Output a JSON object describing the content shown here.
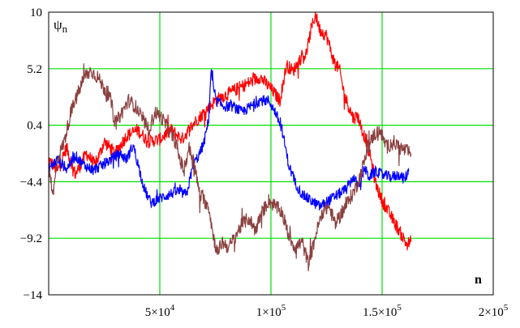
{
  "chart_data": {
    "type": "line",
    "ylabel": "ψ",
    "ylabel_subscript": "n",
    "xlabel": "n",
    "xlim": [
      0,
      200000
    ],
    "ylim": [
      -14,
      10
    ],
    "grid": true,
    "grid_color": "#00e000",
    "y_ticks": [
      {
        "value": 10,
        "label": "10"
      },
      {
        "value": 5.2,
        "label": "5.2"
      },
      {
        "value": 0.4,
        "label": "0.4"
      },
      {
        "value": -4.4,
        "label": "−4.4"
      },
      {
        "value": -9.2,
        "label": "−9.2"
      },
      {
        "value": -14,
        "label": "−14"
      }
    ],
    "x_ticks": [
      {
        "value": 50000,
        "mantissa": "5×10",
        "exp": "4"
      },
      {
        "value": 100000,
        "mantissa": "1×10",
        "exp": "5"
      },
      {
        "value": 150000,
        "mantissa": "1.5×10",
        "exp": "5"
      },
      {
        "value": 200000,
        "mantissa": "2×10",
        "exp": "5"
      }
    ],
    "series": [
      {
        "color": "#ff0000",
        "noise": 0.55,
        "points": [
          [
            0,
            -2.5
          ],
          [
            4000,
            -3.5
          ],
          [
            8000,
            -1.5
          ],
          [
            12000,
            -3.8
          ],
          [
            17000,
            -2.0
          ],
          [
            21000,
            -3.0
          ],
          [
            25000,
            -1.0
          ],
          [
            30000,
            -2.0
          ],
          [
            35000,
            -0.5
          ],
          [
            40000,
            0.0
          ],
          [
            45000,
            -1.0
          ],
          [
            50000,
            -0.8
          ],
          [
            55000,
            0.0
          ],
          [
            60000,
            -0.8
          ],
          [
            65000,
            0.5
          ],
          [
            70000,
            1.5
          ],
          [
            75000,
            2.5
          ],
          [
            80000,
            3.0
          ],
          [
            85000,
            3.5
          ],
          [
            90000,
            4.0
          ],
          [
            95000,
            4.5
          ],
          [
            100000,
            3.5
          ],
          [
            104000,
            2.5
          ],
          [
            107000,
            5.5
          ],
          [
            110000,
            5.0
          ],
          [
            113000,
            6.0
          ],
          [
            116000,
            6.5
          ],
          [
            118000,
            8.5
          ],
          [
            120000,
            9.8
          ],
          [
            122000,
            8.5
          ],
          [
            125000,
            8.0
          ],
          [
            128000,
            6.0
          ],
          [
            131000,
            5.0
          ],
          [
            133000,
            3.0
          ],
          [
            135000,
            2.0
          ],
          [
            137000,
            1.0
          ],
          [
            139000,
            1.2
          ],
          [
            141000,
            0.0
          ],
          [
            143000,
            -1.0
          ],
          [
            145000,
            -2.5
          ],
          [
            147000,
            -4.5
          ],
          [
            150000,
            -6.0
          ],
          [
            153000,
            -7.0
          ],
          [
            156000,
            -8.0
          ],
          [
            159000,
            -9.0
          ],
          [
            161000,
            -9.7
          ],
          [
            163000,
            -9.5
          ]
        ]
      },
      {
        "color": "#0000ff",
        "noise": 0.45,
        "points": [
          [
            0,
            -3.3
          ],
          [
            4000,
            -2.5
          ],
          [
            8000,
            -3.3
          ],
          [
            12000,
            -2.2
          ],
          [
            16000,
            -3.0
          ],
          [
            20000,
            -3.4
          ],
          [
            24000,
            -3.0
          ],
          [
            28000,
            -2.5
          ],
          [
            32000,
            -2.0
          ],
          [
            35000,
            -2.5
          ],
          [
            38000,
            -1.3
          ],
          [
            41000,
            -3.5
          ],
          [
            43000,
            -5.0
          ],
          [
            46000,
            -6.2
          ],
          [
            50000,
            -5.8
          ],
          [
            54000,
            -5.5
          ],
          [
            58000,
            -5.2
          ],
          [
            62000,
            -5.5
          ],
          [
            65000,
            -3.0
          ],
          [
            68000,
            -2.0
          ],
          [
            70000,
            -1.0
          ],
          [
            72000,
            1.0
          ],
          [
            73000,
            5.0
          ],
          [
            75000,
            2.5
          ],
          [
            79000,
            2.0
          ],
          [
            83000,
            2.0
          ],
          [
            87000,
            1.5
          ],
          [
            91000,
            2.0
          ],
          [
            95000,
            2.5
          ],
          [
            99000,
            2.5
          ],
          [
            102000,
            1.5
          ],
          [
            105000,
            0.0
          ],
          [
            108000,
            -3.0
          ],
          [
            111000,
            -4.5
          ],
          [
            114000,
            -5.5
          ],
          [
            118000,
            -6.0
          ],
          [
            122000,
            -6.5
          ],
          [
            126000,
            -6.0
          ],
          [
            130000,
            -5.5
          ],
          [
            134000,
            -5.0
          ],
          [
            137000,
            -4.0
          ],
          [
            140000,
            -5.0
          ],
          [
            142000,
            -3.2
          ],
          [
            144000,
            -4.0
          ],
          [
            147000,
            -3.5
          ],
          [
            150000,
            -3.8
          ],
          [
            154000,
            -4.0
          ],
          [
            158000,
            -3.8
          ],
          [
            160000,
            -4.2
          ],
          [
            162000,
            -3.5
          ]
        ]
      },
      {
        "color": "#8b4040",
        "noise": 0.6,
        "points": [
          [
            0,
            -3.0
          ],
          [
            2000,
            -5.5
          ],
          [
            4000,
            -2.5
          ],
          [
            7000,
            -1.0
          ],
          [
            10000,
            1.5
          ],
          [
            13000,
            3.0
          ],
          [
            16000,
            4.5
          ],
          [
            19000,
            5.0
          ],
          [
            22000,
            4.5
          ],
          [
            25000,
            3.5
          ],
          [
            28000,
            2.5
          ],
          [
            30000,
            0.5
          ],
          [
            33000,
            1.5
          ],
          [
            36000,
            2.5
          ],
          [
            39000,
            2.0
          ],
          [
            42000,
            1.0
          ],
          [
            45000,
            0.0
          ],
          [
            48000,
            1.5
          ],
          [
            51000,
            1.0
          ],
          [
            54000,
            0.0
          ],
          [
            57000,
            -1.0
          ],
          [
            59000,
            -2.5
          ],
          [
            61000,
            -3.5
          ],
          [
            63000,
            -1.5
          ],
          [
            65000,
            -2.5
          ],
          [
            68000,
            -5.5
          ],
          [
            70000,
            -6.0
          ],
          [
            72000,
            -6.5
          ],
          [
            74000,
            -9.0
          ],
          [
            76000,
            -10.5
          ],
          [
            78000,
            -9.5
          ],
          [
            81000,
            -10.0
          ],
          [
            84000,
            -9.0
          ],
          [
            87000,
            -8.0
          ],
          [
            90000,
            -7.5
          ],
          [
            93000,
            -8.5
          ],
          [
            96000,
            -7.0
          ],
          [
            99000,
            -6.0
          ],
          [
            102000,
            -6.5
          ],
          [
            105000,
            -7.0
          ],
          [
            108000,
            -9.0
          ],
          [
            111000,
            -10.0
          ],
          [
            114000,
            -9.5
          ],
          [
            117000,
            -11.5
          ],
          [
            120000,
            -9.0
          ],
          [
            123000,
            -7.0
          ],
          [
            126000,
            -6.5
          ],
          [
            129000,
            -8.0
          ],
          [
            132000,
            -7.0
          ],
          [
            135000,
            -6.0
          ],
          [
            138000,
            -5.0
          ],
          [
            140000,
            -4.0
          ],
          [
            143000,
            -2.0
          ],
          [
            146000,
            -0.5
          ],
          [
            149000,
            0.0
          ],
          [
            152000,
            -1.5
          ],
          [
            155000,
            -1.0
          ],
          [
            158000,
            -1.5
          ],
          [
            161000,
            -1.8
          ],
          [
            163000,
            -2.0
          ]
        ]
      }
    ]
  }
}
